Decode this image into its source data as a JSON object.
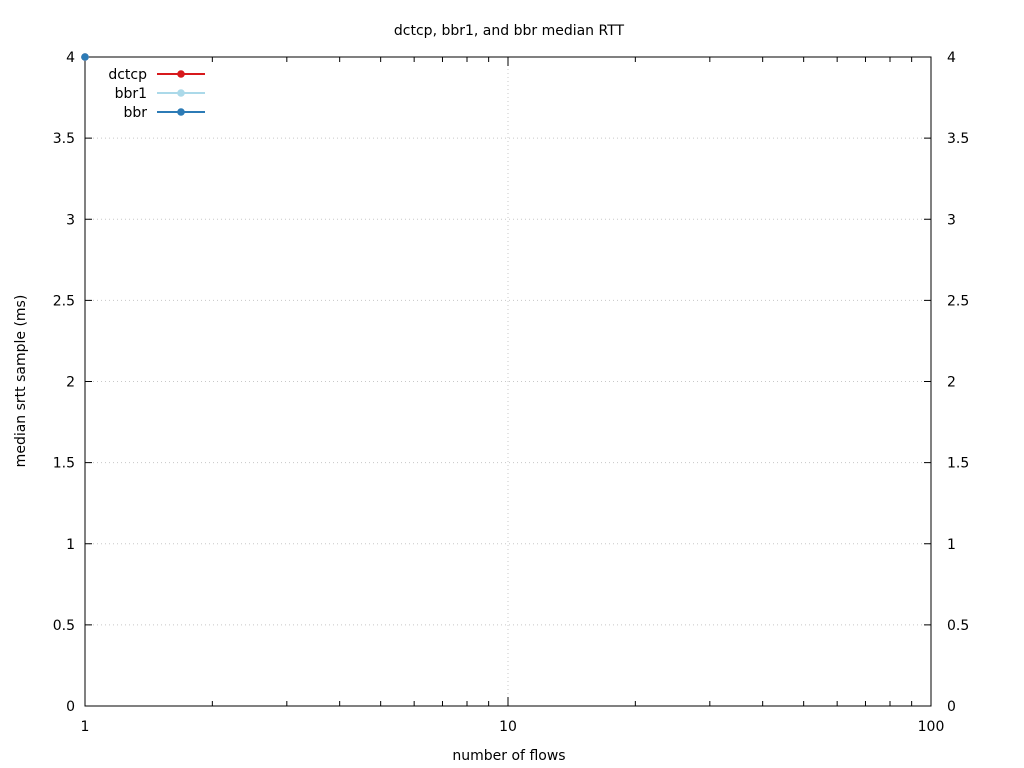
{
  "chart_data": {
    "type": "line",
    "title": "dctcp, bbr1, and bbr median RTT",
    "xlabel": "number of flows",
    "ylabel": "median srtt sample (ms)",
    "x_scale": "log",
    "xlim": [
      1,
      100
    ],
    "ylim": [
      0,
      4
    ],
    "x_ticks": [
      1,
      10,
      100
    ],
    "x_tick_labels": [
      "1",
      "10",
      "100"
    ],
    "y_ticks": [
      0,
      0.5,
      1,
      1.5,
      2,
      2.5,
      3,
      3.5,
      4
    ],
    "y_tick_labels": [
      "0",
      "0.5",
      "1",
      "1.5",
      "2",
      "2.5",
      "3",
      "3.5",
      "4"
    ],
    "y2_tick_labels": [
      "0",
      "0.5",
      "1",
      "1.5",
      "2",
      "2.5",
      "3",
      "3.5",
      "4"
    ],
    "grid": true,
    "legend_position": "top-left",
    "series": [
      {
        "name": "dctcp",
        "color": "#d7191c",
        "x": [
          1
        ],
        "y": [
          4
        ]
      },
      {
        "name": "bbr1",
        "color": "#abd9e9",
        "x": [
          1
        ],
        "y": [
          4
        ]
      },
      {
        "name": "bbr",
        "color": "#2c7bb6",
        "x": [
          1
        ],
        "y": [
          4
        ]
      }
    ]
  }
}
